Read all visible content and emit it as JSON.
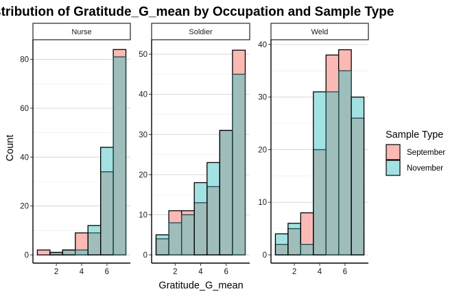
{
  "chart_data": {
    "type": "bar",
    "subtype": "overlaid-histogram-facets",
    "title": "Distribution of Gratitude_G_mean by Occupation and Sample Type",
    "xlabel": "Gratitude_G_mean",
    "ylabel": "Count",
    "bin_width": 1,
    "bin_centers": [
      1,
      2,
      3,
      4,
      5,
      6,
      7
    ],
    "x_ticks": [
      2,
      4,
      6
    ],
    "legend": {
      "title": "Sample Type",
      "placement": "right",
      "entries": [
        {
          "name": "September",
          "color": "#F8766D"
        },
        {
          "name": "November",
          "color": "#00BFC4"
        }
      ]
    },
    "panels": [
      {
        "facet": "Nurse",
        "ylim": [
          0,
          88
        ],
        "y_ticks": [
          0,
          20,
          40,
          60,
          80
        ],
        "series": [
          {
            "name": "September",
            "values": [
              2,
              1,
              2,
              9,
              9,
              34,
              84
            ]
          },
          {
            "name": "November",
            "values": [
              0,
              1,
              2,
              2,
              12,
              44,
              81
            ]
          }
        ]
      },
      {
        "facet": "Soldier",
        "ylim": [
          0,
          53.6
        ],
        "y_ticks": [
          0,
          10,
          20,
          30,
          40,
          50
        ],
        "series": [
          {
            "name": "September",
            "values": [
              4,
              11,
              11,
              13,
              17,
              31,
              51
            ]
          },
          {
            "name": "November",
            "values": [
              5,
              8,
              10,
              18,
              23,
              31,
              45
            ]
          }
        ]
      },
      {
        "facet": "Weld",
        "ylim": [
          0,
          40.9
        ],
        "y_ticks": [
          0,
          10,
          20,
          30,
          40
        ],
        "series": [
          {
            "name": "September",
            "values": [
              2,
              5,
              8,
              20,
              38,
              39,
              26
            ]
          },
          {
            "name": "November",
            "values": [
              4,
              6,
              2,
              31,
              31,
              35,
              30
            ]
          }
        ]
      }
    ],
    "grid": true,
    "fill_alpha": 0.4
  }
}
